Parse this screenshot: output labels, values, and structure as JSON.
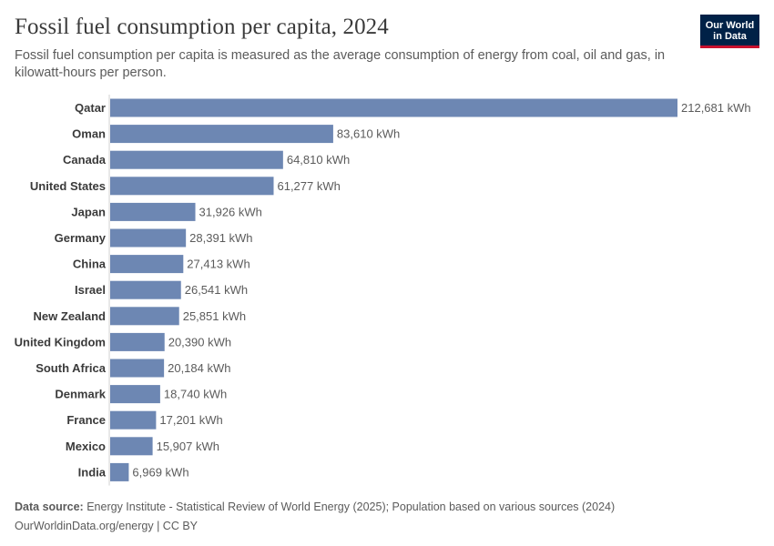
{
  "header": {
    "title": "Fossil fuel consumption per capita, 2024",
    "subtitle": "Fossil fuel consumption per capita is measured as the average consumption of energy from coal, oil and gas, in kilowatt-hours per person.",
    "logo_line1": "Our World",
    "logo_line2": "in Data"
  },
  "footer": {
    "source_label": "Data source:",
    "source_text": "Energy Institute - Statistical Review of World Energy (2025); Population based on various sources (2024)",
    "url_text": "OurWorldinData.org/energy | CC BY"
  },
  "colors": {
    "bar": "#6d87b3",
    "axis": "#d0d0d0",
    "logo_bg": "#002147",
    "logo_accent": "#c8102e"
  },
  "chart_data": {
    "type": "bar",
    "orientation": "horizontal",
    "unit": "kWh",
    "categories": [
      "Qatar",
      "Oman",
      "Canada",
      "United States",
      "Japan",
      "Germany",
      "China",
      "Israel",
      "New Zealand",
      "United Kingdom",
      "South Africa",
      "Denmark",
      "France",
      "Mexico",
      "India"
    ],
    "values": [
      212681,
      83610,
      64810,
      61277,
      31926,
      28391,
      27413,
      26541,
      25851,
      20390,
      20184,
      18740,
      17201,
      15907,
      6969
    ],
    "value_labels": [
      "212,681 kWh",
      "83,610 kWh",
      "64,810 kWh",
      "61,277 kWh",
      "31,926 kWh",
      "28,391 kWh",
      "27,413 kWh",
      "26,541 kWh",
      "25,851 kWh",
      "20,390 kWh",
      "20,184 kWh",
      "18,740 kWh",
      "17,201 kWh",
      "15,907 kWh",
      "6,969 kWh"
    ],
    "xlim": [
      0,
      212681
    ],
    "grid": false,
    "legend": "none"
  }
}
